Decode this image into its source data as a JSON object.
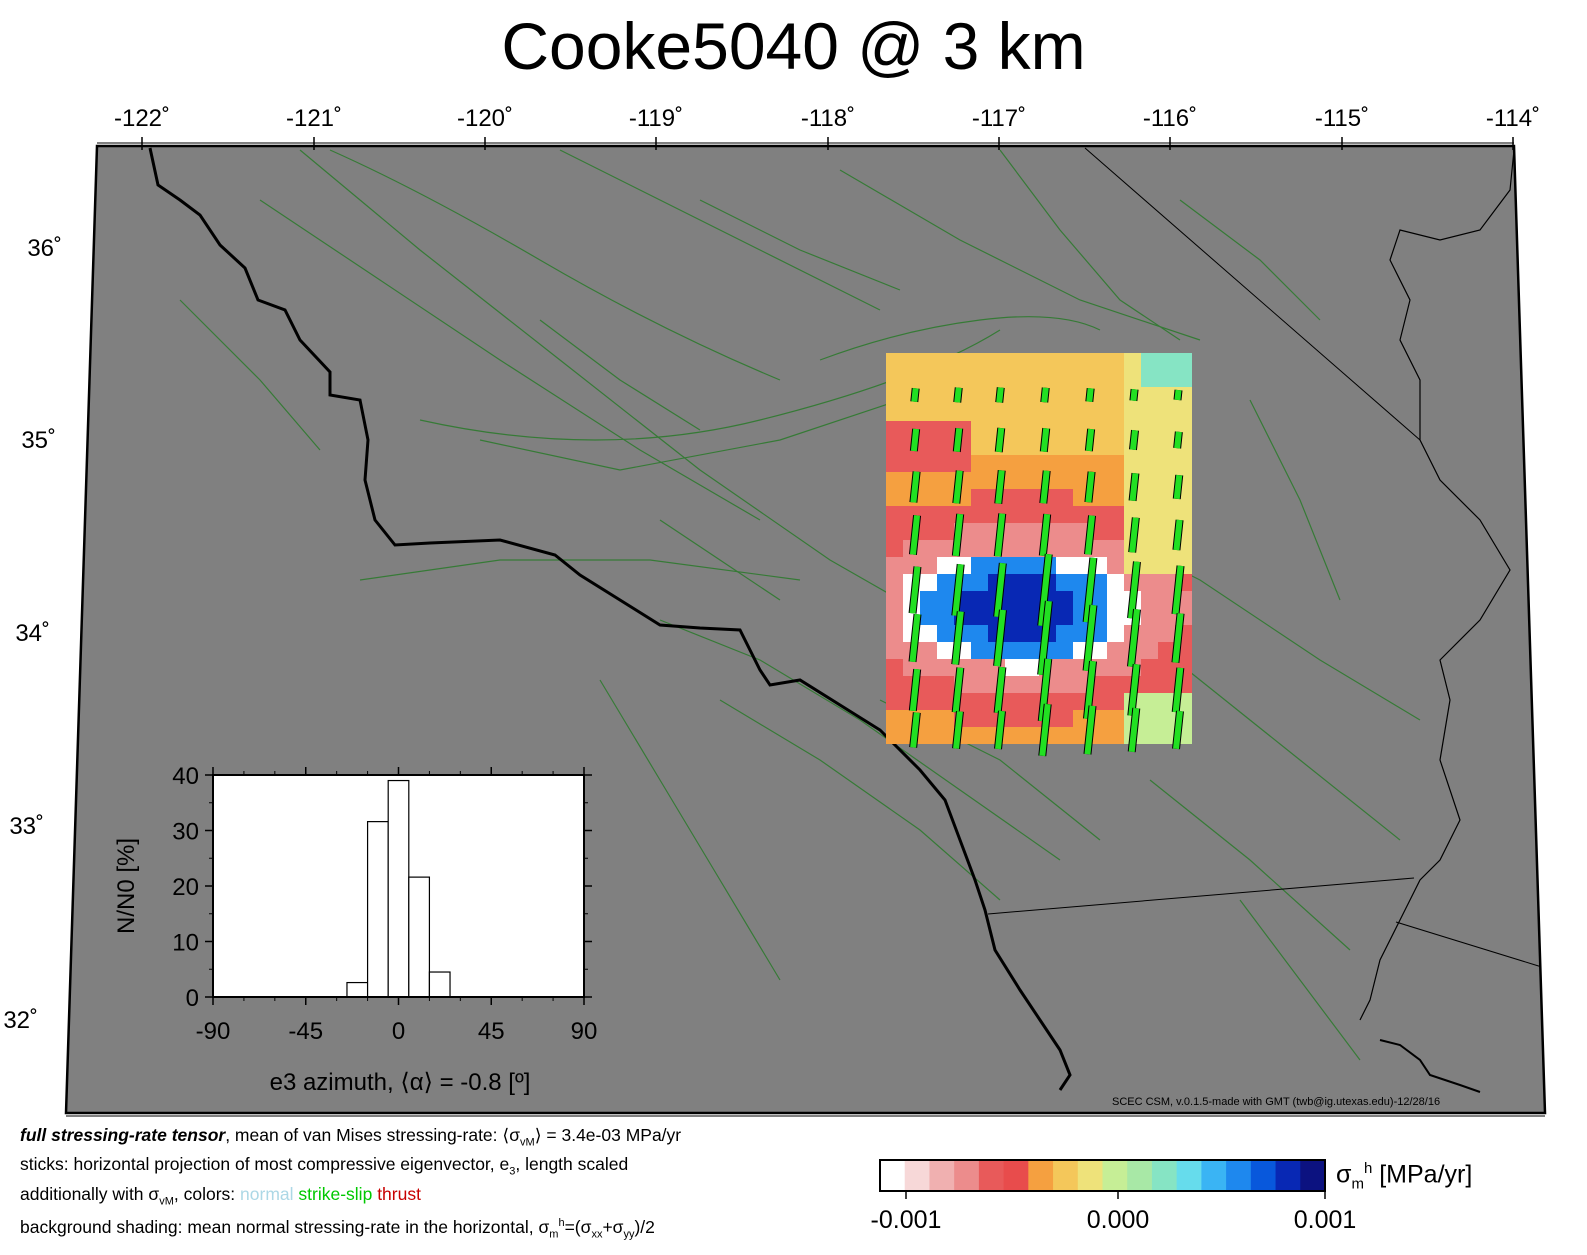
{
  "title": "Cooke5040 @ 3 km",
  "map": {
    "lon_ticks": [
      "-122˚",
      "-121˚",
      "-120˚",
      "-119˚",
      "-118˚",
      "-117˚",
      "-116˚",
      "-115˚",
      "-114˚"
    ],
    "lat_ticks": [
      "36˚",
      "35˚",
      "34˚",
      "33˚",
      "32˚"
    ],
    "background_color": "#808080",
    "fault_color": "#1e7a1e",
    "coast_color": "#000000",
    "credit": "SCEC CSM, v.0.1.5-made with GMT (twb@ig.utexas.edu)-12/28/16"
  },
  "caption": {
    "line1_bold": "full stressing-rate tensor",
    "line1_rest": ", mean of van Mises stressing-rate: ⟨σ",
    "line1_sub": "vM",
    "line1_end": "⟩ = 3.4e-03 MPa/yr",
    "line2": "sticks: horizontal projection of most compressive eigenvector, e",
    "line2_sub": "3",
    "line2_end": ", length scaled",
    "line3_start": "additionally with σ",
    "line3_sub": "vM",
    "line3_mid": ", colors: ",
    "color_normal": "normal",
    "color_strikeslip": "strike-slip",
    "color_thrust": "thrust",
    "line4_start": "background shading: mean normal stressing-rate in the horizontal, σ",
    "line4_sub": "m",
    "line4_sup": "h",
    "line4_mid": "=(σ",
    "line4_sub2": "xx",
    "line4_plus": "+σ",
    "line4_sub3": "yy",
    "line4_end": ")/2"
  },
  "colorbar": {
    "unit_symbol": "σ",
    "unit_sub": "m",
    "unit_sup": "h",
    "unit_text": " [MPa/yr]",
    "ticks": [
      "-0.001",
      "0.000",
      "0.001"
    ],
    "colors": [
      "#ffffff",
      "#f7d8d8",
      "#f0b0b0",
      "#ec8c8c",
      "#e85a5a",
      "#e84c4c",
      "#f5a040",
      "#f4c75a",
      "#eee27a",
      "#c6ee96",
      "#a8e8a6",
      "#86e4c4",
      "#66dcec",
      "#3ab4f4",
      "#1e88ee",
      "#0858dc",
      "#0828b4",
      "#0c1280"
    ]
  },
  "chart_data": {
    "type": "bar",
    "xlabel": "e3 azimuth, ⟨α⟩ = -0.8 [º]",
    "ylabel": "N/N0 [%]",
    "xlim": [
      -90,
      90
    ],
    "ylim": [
      0,
      40
    ],
    "x_ticks": [
      "-90",
      "-45",
      "0",
      "45",
      "90"
    ],
    "y_ticks": [
      "0",
      "10",
      "20",
      "30",
      "40"
    ],
    "bin_width": 10,
    "bins": [
      {
        "center": -20,
        "value": 2.6
      },
      {
        "center": -10,
        "value": 31.6
      },
      {
        "center": 0,
        "value": 39.0
      },
      {
        "center": 10,
        "value": 21.6
      },
      {
        "center": 20,
        "value": 4.5
      }
    ]
  }
}
